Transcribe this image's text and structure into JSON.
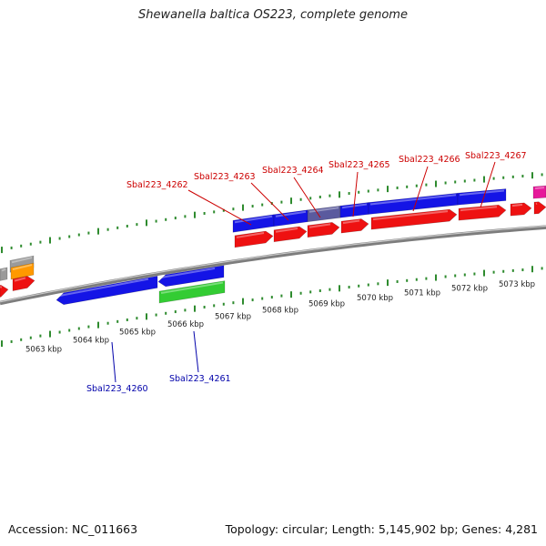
{
  "title": "Shewanella baltica OS223, complete genome",
  "accession": "Accession: NC_011663",
  "summary": "Topology: circular; Length: 5,145,902 bp; Genes: 4,281",
  "colors": {
    "backbone": "#8c8c8c",
    "tick": "#2e8b2e",
    "cds_blue": "#1414e6",
    "cds_red": "#ee1111",
    "cds_green": "#33cc33",
    "cds_slate": "#5a5a9e",
    "cds_gray": "#9a9a9a",
    "cds_orange": "#ff9900",
    "cds_magenta": "#e6199a",
    "label_red": "#cc0000",
    "label_blue": "#0000aa"
  },
  "kbp_labels": [
    "5063 kbp",
    "5064 kbp",
    "5065 kbp",
    "5066 kbp",
    "5067 kbp",
    "5068 kbp",
    "5069 kbp",
    "5070 kbp",
    "5071 kbp",
    "5072 kbp",
    "5073 kbp"
  ],
  "gene_labels_top": [
    "Sbal223_4262",
    "Sbal223_4263",
    "Sbal223_4264",
    "Sbal223_4265",
    "Sbal223_4266",
    "Sbal223_4267"
  ],
  "gene_labels_bottom": [
    "Sbal223_4260",
    "Sbal223_4261"
  ]
}
